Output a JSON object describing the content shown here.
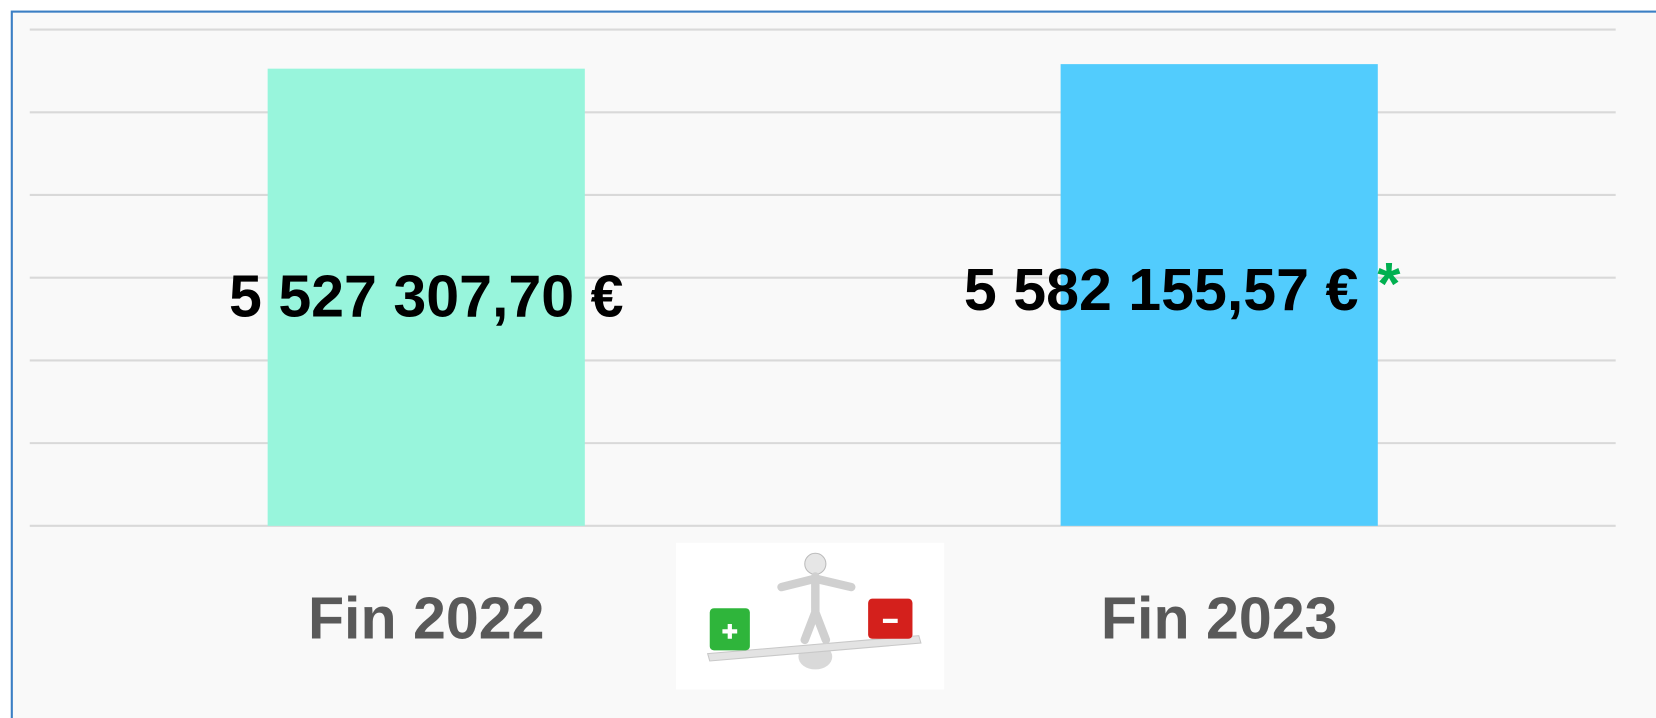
{
  "chart_data": {
    "type": "bar",
    "categories": [
      "Fin 2022",
      "Fin 2023"
    ],
    "values": [
      5527307.7,
      5582155.57
    ],
    "value_labels": [
      "5 527 307,70 €",
      "5 582 155,57 €"
    ],
    "colors": [
      "#98f5dc",
      "#52ccfd"
    ],
    "ylim": [
      0,
      6000000
    ],
    "yticks": [
      0,
      1000000,
      2000000,
      3000000,
      4000000,
      5000000,
      6000000
    ],
    "grid": true,
    "annotations": [
      {
        "text": "*",
        "category": "Fin 2023",
        "color": "#00b050"
      }
    ]
  }
}
